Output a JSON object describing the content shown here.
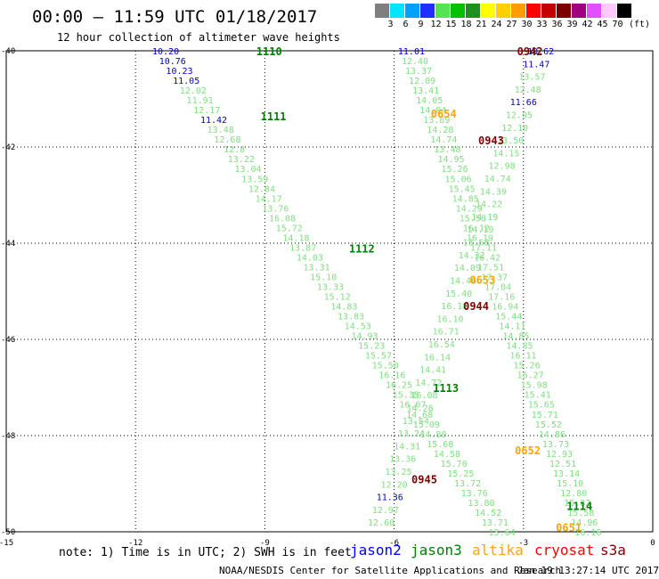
{
  "title": "00:00 – 11:59 UTC 01/18/2017",
  "subtitle": "12 hour collection of altimeter wave heights",
  "colorbar": {
    "unit": "(ft)",
    "labels": [
      "3",
      "6",
      "9",
      "12",
      "15",
      "18",
      "21",
      "24",
      "27",
      "30",
      "33",
      "36",
      "39",
      "42",
      "45",
      "70"
    ],
    "colors": [
      "#7f7f7f",
      "#00e5ff",
      "#00a0ff",
      "#1f2fff",
      "#54e354",
      "#00c000",
      "#1f8f1f",
      "#ffff00",
      "#ffcf00",
      "#ff9c00",
      "#ff0000",
      "#c40000",
      "#7a0000",
      "#a0007f",
      "#e050ff",
      "#ffc8ff",
      "#000000"
    ]
  },
  "axes": {
    "x_ticks": [
      "-15",
      "-12",
      "-9",
      "-6",
      "-3",
      "0"
    ],
    "y_ticks": [
      "-40",
      "-42",
      "-44",
      "-46",
      "-48",
      "-50"
    ]
  },
  "passes": [
    {
      "label": "1110",
      "color": "#008000",
      "lon": -8.9,
      "lat": -40.0
    },
    {
      "label": "1111",
      "color": "#008000",
      "lon": -8.8,
      "lat": -41.35
    },
    {
      "label": "1112",
      "color": "#008000",
      "lon": -6.75,
      "lat": -44.1
    },
    {
      "label": "1113",
      "color": "#008000",
      "lon": -4.8,
      "lat": -47.0
    },
    {
      "label": "1114",
      "color": "#008000",
      "lon": -1.7,
      "lat": -49.45
    },
    {
      "label": "0654",
      "color": "#ffa500",
      "lon": -4.85,
      "lat": -41.3
    },
    {
      "label": "0653",
      "color": "#ffa500",
      "lon": -3.95,
      "lat": -44.75
    },
    {
      "label": "0652",
      "color": "#ffa500",
      "lon": -2.9,
      "lat": -48.3
    },
    {
      "label": "0651",
      "color": "#ffa500",
      "lon": -1.95,
      "lat": -49.9
    },
    {
      "label": "0942",
      "color": "#800000",
      "lon": -2.85,
      "lat": -40.0
    },
    {
      "label": "0943",
      "color": "#800000",
      "lon": -3.75,
      "lat": -41.85
    },
    {
      "label": "0944",
      "color": "#800000",
      "lon": -4.1,
      "lat": -45.3
    },
    {
      "label": "0945",
      "color": "#800000",
      "lon": -5.3,
      "lat": -48.9
    }
  ],
  "tracks": [
    {
      "name": "track-1110",
      "color": "#80e080",
      "lon_a": -11.3,
      "lat_a": -40.0,
      "lon_b": -3.5,
      "lat_b": -50.0,
      "values": [
        "10.20",
        "10.76",
        "10.23",
        "11.05",
        "12.02",
        "11.91",
        "12.17",
        "11.42",
        "13.48",
        "12.68",
        "12.8",
        "13.22",
        "13.04",
        "13.59",
        "12.84",
        "14.17",
        "13.76",
        "16.08",
        "15.72",
        "14.18",
        "13.87",
        "14.03",
        "13.31",
        "15.10",
        "13.33",
        "15.12",
        "14.83",
        "13.83",
        "14.53",
        "14.93",
        "15.23",
        "15.57",
        "15.50",
        "16.16",
        "16.25",
        "15.35",
        "16.07",
        "14.68",
        "15.09",
        "14.80",
        "15.68",
        "14.58",
        "15.70",
        "15.25",
        "13.72",
        "13.76",
        "13.80",
        "14.52",
        "13.71",
        "13.64"
      ],
      "blue_idx": [
        0,
        1,
        2,
        3,
        7
      ]
    },
    {
      "name": "track-1113",
      "color": "#80e080",
      "lon_a": -5.6,
      "lat_a": -40.0,
      "lon_b": -1.5,
      "lat_b": -50.0,
      "values": [
        "11.01",
        "12.40",
        "13.37",
        "12.09",
        "13.41",
        "14.05",
        "14.04",
        "13.89",
        "14.28",
        "14.74",
        "13.48",
        "14.95",
        "15.26",
        "15.06",
        "15.45",
        "14.85",
        "14.29",
        "15.58",
        "16.12",
        "16.19",
        "17.11",
        "16.42",
        "17.51",
        "17.37",
        "17.04",
        "17.16",
        "16.94",
        "15.44",
        "14.11",
        "14.85",
        "14.85",
        "16.11",
        "15.26",
        "16.27",
        "15.98",
        "15.41",
        "15.65",
        "15.71",
        "15.52",
        "14.86",
        "13.73",
        "12.93",
        "12.51",
        "13.14",
        "15.10",
        "12.80",
        "15.82",
        "15.58",
        "14.96",
        "16.16"
      ],
      "blue_idx": [
        0
      ]
    },
    {
      "name": "track-0654",
      "color": "#80e080",
      "lon_a": -2.6,
      "lat_a": -40.0,
      "lon_b": -6.3,
      "lat_b": -49.8,
      "values": [
        "10.62",
        "11.47",
        "13.57",
        "12.48",
        "11.66",
        "12.05",
        "12.10",
        "13.50",
        "14.15",
        "12.98",
        "14.74",
        "14.39",
        "14.22",
        "14.19",
        "14.19",
        "13.68",
        "14.32",
        "14.09",
        "14.46",
        "15.40",
        "16.18",
        "16.10",
        "16.71",
        "16.54",
        "16.14",
        "14.41",
        "14.72",
        "16.08",
        "14.28",
        "13.54",
        "13.24",
        "14.31",
        "13.36",
        "13.25",
        "12.20",
        "11.36",
        "12.97",
        "12.60"
      ],
      "blue_idx": [
        0,
        1,
        4,
        35
      ]
    }
  ],
  "note": "note: 1) Time is in UTC; 2) SWH is in feet",
  "legend": [
    {
      "label": "jason2",
      "color": "#0000ff"
    },
    {
      "label": "jason3",
      "color": "#008000"
    },
    {
      "label": "altika",
      "color": "#ffa500"
    },
    {
      "label": "cryosat",
      "color": "#ff0000"
    },
    {
      "label": "s3a",
      "color": "#800000"
    }
  ],
  "footer": "NOAA/NESDIS Center for Satellite Applications and Research",
  "footer_time": "Jan 19 13:27:14 UTC 2017"
}
